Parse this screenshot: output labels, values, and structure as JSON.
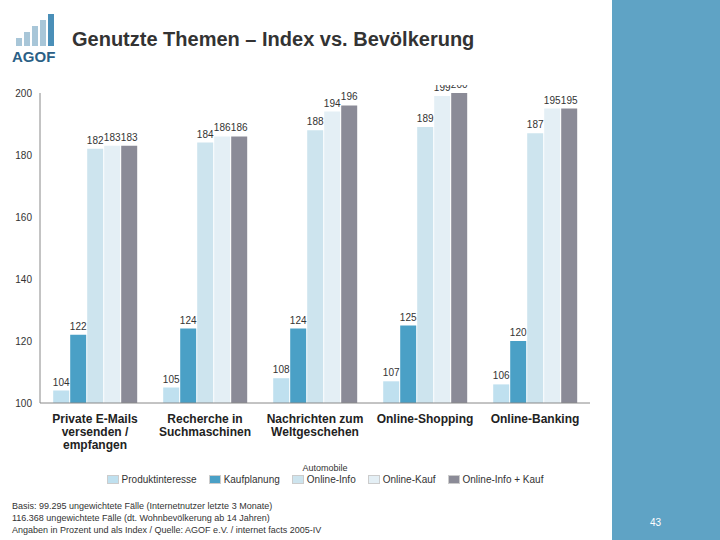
{
  "logo": "AGOF",
  "footer": [
    "Basis: 99.295 ungewichtete Fälle (Internetnutzer letzte 3 Monate)",
    "116.368 ungewichtete Fälle (dt. Wohnbevölkerung ab 14 Jahren)",
    "Angaben in Prozent und als Index / Quelle: AGOF e.V. / internet facts 2005-IV"
  ],
  "page": "43",
  "chart_data": {
    "type": "bar",
    "title": "Genutzte Themen – Index vs. Bevölkerung",
    "annotation": "Automobile",
    "categories": [
      "Private E-Mails versenden / empfangen",
      "Recherche in Suchmaschinen",
      "Nachrichten zum Weltgeschehen",
      "Online-Shopping",
      "Online-Banking"
    ],
    "series": [
      {
        "name": "Produktinteresse",
        "color": "#bfe0ef",
        "values": [
          104,
          105,
          108,
          107,
          106
        ]
      },
      {
        "name": "Kaufplanung",
        "color": "#4aa0c6",
        "values": [
          122,
          124,
          124,
          125,
          120
        ]
      },
      {
        "name": "Online-Info",
        "color": "#cde4ee",
        "values": [
          182,
          184,
          188,
          189,
          187
        ]
      },
      {
        "name": "Online-Kauf",
        "color": "#e4eff5",
        "values": [
          183,
          186,
          194,
          199,
          195
        ]
      },
      {
        "name": "Online-Info + Kauf",
        "color": "#8b8b97",
        "values": [
          183,
          186,
          196,
          200,
          195
        ]
      }
    ],
    "ylim": [
      100,
      200
    ],
    "yticks": [
      100,
      120,
      140,
      160,
      180,
      200
    ],
    "grid": false,
    "data_labels": true,
    "legend": "bottom"
  }
}
